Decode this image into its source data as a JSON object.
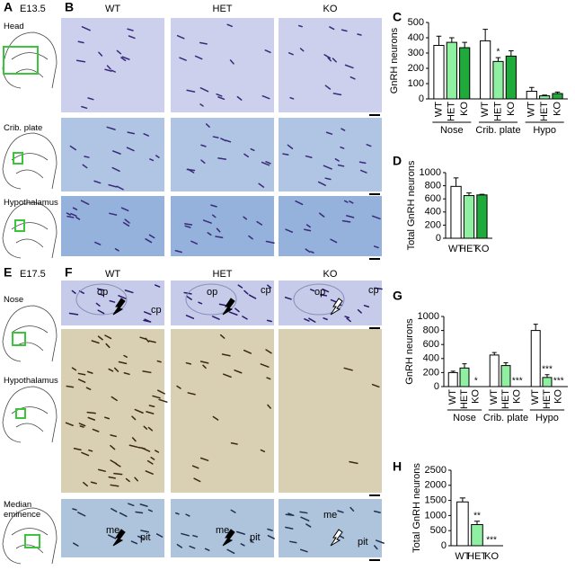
{
  "top": {
    "label_a": "A",
    "stage": "E13.5",
    "label_b": "B",
    "columns": [
      "WT",
      "HET",
      "KO"
    ],
    "rows": [
      "Head",
      "Crib. plate",
      "Hypothalamus"
    ]
  },
  "bottom": {
    "label_e": "E",
    "stage": "E17.5",
    "label_f": "F",
    "columns": [
      "WT",
      "HET",
      "KO"
    ],
    "rows": [
      "Nose",
      "Hypothalamus",
      "Median eminence"
    ],
    "annotations": {
      "op": "op",
      "cp": "cp",
      "me": "me",
      "pit": "pit"
    }
  },
  "chart_data": [
    {
      "type": "bar",
      "panel_label": "C",
      "y_label": "GnRH neurons",
      "categories": [
        "WT",
        "HET",
        "KO"
      ],
      "colors": [
        "#ffffff",
        "#8ef0a0",
        "#1faa3c"
      ],
      "ylim": [
        0,
        500
      ],
      "yticks": [
        0,
        100,
        200,
        300,
        400,
        500
      ],
      "groups": [
        {
          "name": "Nose",
          "values": [
            350,
            370,
            335
          ],
          "errors": [
            60,
            30,
            35
          ],
          "annotations": [
            null,
            null,
            null
          ]
        },
        {
          "name": "Crib. plate",
          "values": [
            380,
            245,
            280
          ],
          "errors": [
            75,
            25,
            35
          ],
          "annotations": [
            null,
            "*",
            null
          ]
        },
        {
          "name": "Hypo",
          "values": [
            50,
            20,
            35
          ],
          "errors": [
            25,
            5,
            10
          ],
          "annotations": [
            null,
            null,
            null
          ]
        }
      ]
    },
    {
      "type": "bar",
      "panel_label": "D",
      "y_label": "Total GnRH neurons",
      "categories": [
        "WT",
        "HET",
        "KO"
      ],
      "colors": [
        "#ffffff",
        "#8ef0a0",
        "#1faa3c"
      ],
      "ylim": [
        0,
        1000
      ],
      "yticks": [
        0,
        200,
        400,
        600,
        800,
        1000
      ],
      "values": [
        790,
        650,
        660
      ],
      "errors": [
        130,
        40,
        10
      ],
      "annotations": [
        null,
        null,
        null
      ]
    },
    {
      "type": "bar",
      "panel_label": "G",
      "y_label": "GnRH neurons",
      "categories": [
        "WT",
        "HET",
        "KO"
      ],
      "colors": [
        "#ffffff",
        "#8ef0a0",
        "#1faa3c"
      ],
      "ylim": [
        0,
        1000
      ],
      "yticks": [
        0,
        200,
        400,
        600,
        800,
        1000
      ],
      "groups": [
        {
          "name": "Nose",
          "values": [
            200,
            265,
            0
          ],
          "errors": [
            20,
            60,
            0
          ],
          "annotations": [
            null,
            null,
            "*"
          ]
        },
        {
          "name": "Crib. plate",
          "values": [
            450,
            300,
            0
          ],
          "errors": [
            35,
            40,
            0
          ],
          "annotations": [
            null,
            null,
            "***"
          ]
        },
        {
          "name": "Hypo",
          "values": [
            800,
            130,
            0
          ],
          "errors": [
            90,
            40,
            0
          ],
          "annotations": [
            null,
            "***",
            "***"
          ]
        }
      ]
    },
    {
      "type": "bar",
      "panel_label": "H",
      "y_label": "Total GnRH neurons",
      "categories": [
        "WT",
        "HET",
        "KO"
      ],
      "colors": [
        "#ffffff",
        "#8ef0a0",
        "#1faa3c"
      ],
      "ylim": [
        0,
        2500
      ],
      "yticks": [
        0,
        500,
        1000,
        1500,
        2000,
        2500
      ],
      "values": [
        1450,
        700,
        0
      ],
      "errors": [
        130,
        110,
        0
      ],
      "annotations": [
        null,
        "**",
        "***"
      ]
    }
  ]
}
